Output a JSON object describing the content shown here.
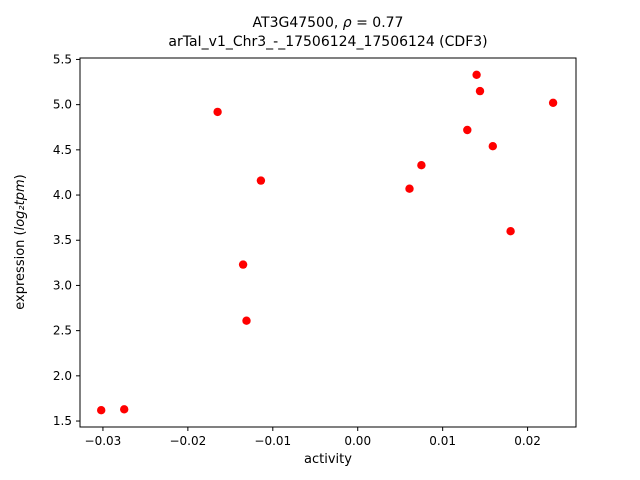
{
  "figure": {
    "background": "#ffffff"
  },
  "chart_data": {
    "type": "scatter",
    "title_prefix": "AT3G47500, ",
    "title_rho": "ρ",
    "title_suffix": " = 0.77",
    "subtitle": "arTaI_v1_Chr3_-_17506124_17506124 (CDF3)",
    "xlabel": "activity",
    "ylabel_prefix": "expression (",
    "ylabel_math": "log₂tpm",
    "ylabel_suffix": ")",
    "marker_color": "#ff0000",
    "marker_radius": 4.2,
    "xlim": [
      -0.0327,
      0.0257
    ],
    "ylim": [
      1.434,
      5.516
    ],
    "xticks": [
      -0.03,
      -0.02,
      -0.01,
      0.0,
      0.01,
      0.02
    ],
    "xtick_labels": [
      "−0.03",
      "−0.02",
      "−0.01",
      "0.00",
      "0.01",
      "0.02"
    ],
    "yticks": [
      1.5,
      2.0,
      2.5,
      3.0,
      3.5,
      4.0,
      4.5,
      5.0,
      5.5
    ],
    "ytick_labels": [
      "1.5",
      "2.0",
      "2.5",
      "3.0",
      "3.5",
      "4.0",
      "4.5",
      "5.0",
      "5.5"
    ],
    "grid": false,
    "legend": "none",
    "points": [
      {
        "x": -0.0302,
        "y": 1.62
      },
      {
        "x": -0.0275,
        "y": 1.63
      },
      {
        "x": -0.0165,
        "y": 4.92
      },
      {
        "x": -0.0135,
        "y": 3.23
      },
      {
        "x": -0.0131,
        "y": 2.61
      },
      {
        "x": -0.0114,
        "y": 4.16
      },
      {
        "x": 0.0061,
        "y": 4.07
      },
      {
        "x": 0.0075,
        "y": 4.33
      },
      {
        "x": 0.0129,
        "y": 4.72
      },
      {
        "x": 0.014,
        "y": 5.33
      },
      {
        "x": 0.0144,
        "y": 5.15
      },
      {
        "x": 0.0159,
        "y": 4.54
      },
      {
        "x": 0.018,
        "y": 3.6
      },
      {
        "x": 0.023,
        "y": 5.02
      }
    ]
  }
}
